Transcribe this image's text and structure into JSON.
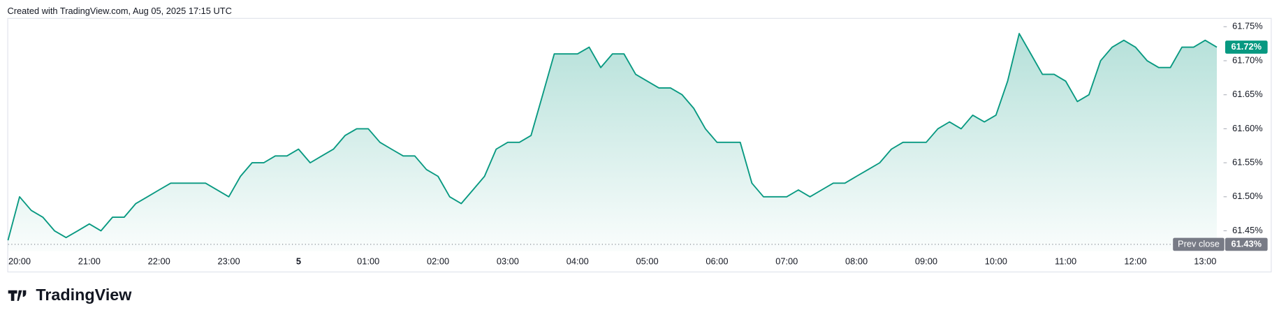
{
  "header": "Created with TradingView.com, Aug 05, 2025 17:15 UTC",
  "logo": "TradingView",
  "chart_data": {
    "type": "area",
    "color": "#089981",
    "categories": [
      null,
      "20:00",
      null,
      null,
      null,
      null,
      null,
      "21:00",
      null,
      null,
      null,
      null,
      null,
      "22:00",
      null,
      null,
      null,
      null,
      null,
      "23:00",
      null,
      null,
      null,
      null,
      null,
      "5",
      null,
      null,
      null,
      null,
      null,
      "01:00",
      null,
      null,
      null,
      null,
      null,
      "02:00",
      null,
      null,
      null,
      null,
      null,
      "03:00",
      null,
      null,
      null,
      null,
      null,
      "04:00",
      null,
      null,
      null,
      null,
      null,
      "05:00",
      null,
      null,
      null,
      null,
      null,
      "06:00",
      null,
      null,
      null,
      null,
      null,
      "07:00",
      null,
      null,
      null,
      null,
      null,
      "08:00",
      null,
      null,
      null,
      null,
      null,
      "09:00",
      null,
      null,
      null,
      null,
      null,
      "10:00",
      null,
      null,
      null,
      null,
      null,
      "11:00",
      null,
      null,
      null,
      null,
      null,
      "12:00",
      null,
      null,
      null,
      null,
      null,
      "13:00",
      null
    ],
    "values": [
      61.436,
      61.5,
      61.48,
      61.47,
      61.45,
      61.44,
      61.45,
      61.46,
      61.45,
      61.47,
      61.47,
      61.49,
      61.5,
      61.51,
      61.52,
      61.52,
      61.52,
      61.52,
      61.51,
      61.5,
      61.53,
      61.55,
      61.55,
      61.56,
      61.56,
      61.57,
      61.55,
      61.56,
      61.57,
      61.59,
      61.6,
      61.6,
      61.58,
      61.57,
      61.56,
      61.56,
      61.54,
      61.53,
      61.5,
      61.49,
      61.51,
      61.53,
      61.57,
      61.58,
      61.58,
      61.59,
      61.65,
      61.71,
      61.71,
      61.71,
      61.72,
      61.69,
      61.71,
      61.71,
      61.68,
      61.67,
      61.66,
      61.66,
      61.65,
      61.63,
      61.6,
      61.58,
      61.58,
      61.58,
      61.52,
      61.5,
      61.5,
      61.5,
      61.51,
      61.5,
      61.51,
      61.52,
      61.52,
      61.53,
      61.54,
      61.55,
      61.57,
      61.58,
      61.58,
      61.58,
      61.6,
      61.61,
      61.6,
      61.62,
      61.61,
      61.62,
      61.67,
      61.74,
      61.71,
      61.68,
      61.68,
      61.67,
      61.64,
      61.65,
      61.7,
      61.72,
      61.73,
      61.72,
      61.7,
      61.69,
      61.69,
      61.72,
      61.72,
      61.73,
      61.72
    ],
    "ylim": [
      61.42,
      61.76
    ],
    "yticks": [
      {
        "value": 61.45,
        "label": "61.45%"
      },
      {
        "value": 61.5,
        "label": "61.50%"
      },
      {
        "value": 61.55,
        "label": "61.55%"
      },
      {
        "value": 61.6,
        "label": "61.60%"
      },
      {
        "value": 61.65,
        "label": "61.65%"
      },
      {
        "value": 61.7,
        "label": "61.70%"
      },
      {
        "value": 61.75,
        "label": "61.75%"
      }
    ],
    "grid": false,
    "last_price": {
      "value": 61.72,
      "label": "61.72%"
    },
    "prev_close": {
      "name": "Prev close",
      "value": 61.43,
      "label": "61.43%"
    }
  }
}
